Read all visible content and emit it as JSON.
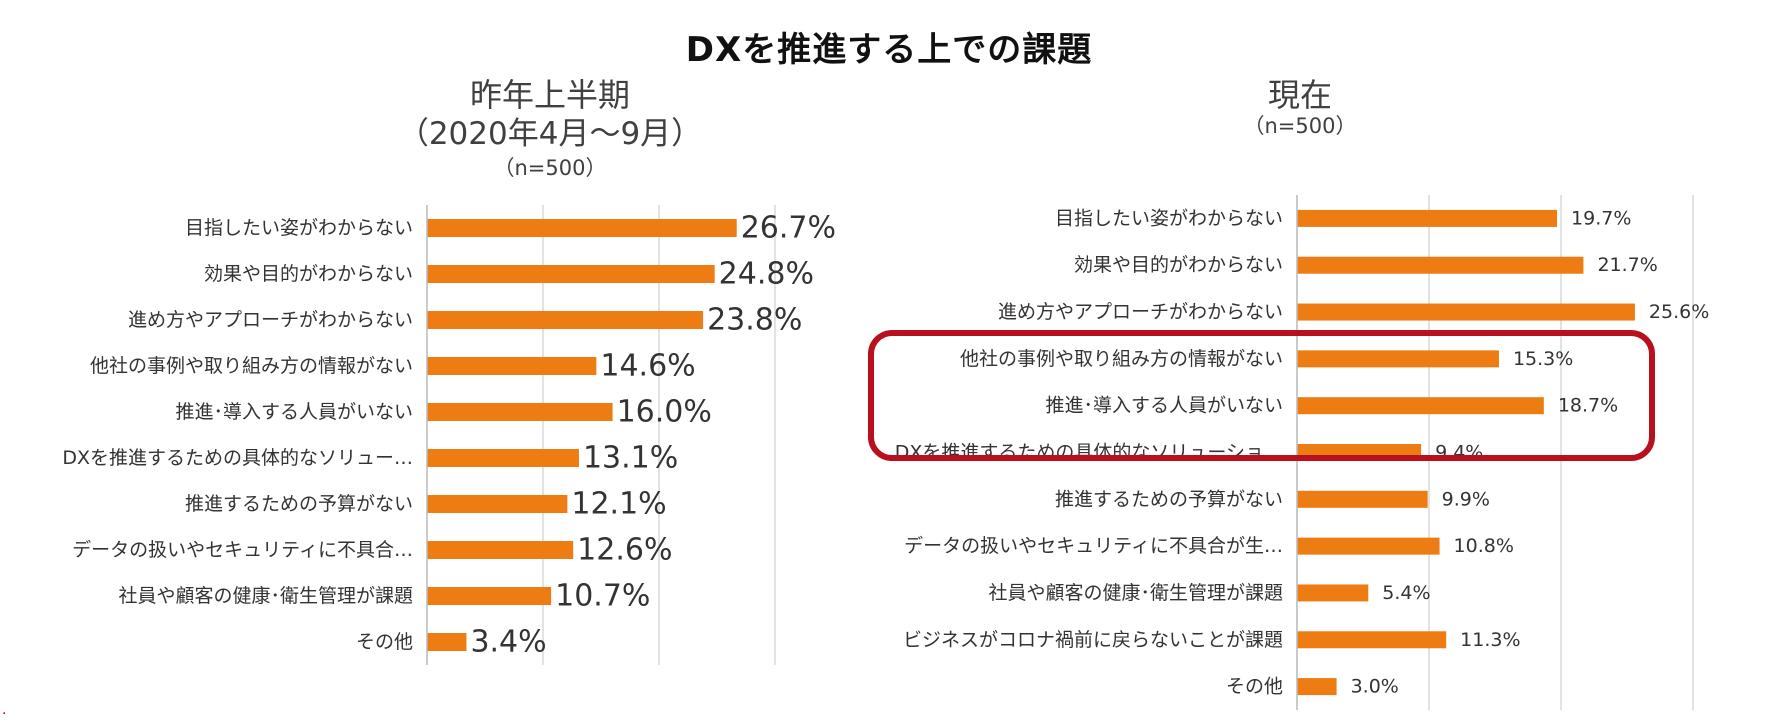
{
  "title": "DXを推進する上での課題",
  "footnote_mark": ".",
  "colors": {
    "bar": "#ED7D12",
    "highlight": "#B8101E",
    "grid": "#D9D9D9"
  },
  "panels": {
    "left": {
      "title": "昨年上半期",
      "subtitle": "（2020年4月～9月）",
      "n": "（n=500）"
    },
    "right": {
      "title": "現在",
      "n": "（n=500）"
    }
  },
  "chart_data": [
    {
      "type": "bar",
      "orientation": "horizontal",
      "title": "昨年上半期",
      "categories": [
        "目指したい姿がわからない",
        "効果や目的がわからない",
        "進め方やアプローチがわからない",
        "他社の事例や取り組み方の情報がない",
        "推進･導入する人員がいない",
        "DXを推進するための具体的なソリュー…",
        "推進するための予算がない",
        "データの扱いやセキュリティに不具合…",
        "社員や顧客の健康･衛生管理が課題",
        "その他"
      ],
      "values": [
        26.7,
        24.8,
        23.8,
        14.6,
        16.0,
        13.1,
        12.1,
        12.6,
        10.7,
        3.4
      ],
      "labels": [
        "26.7%",
        "24.8%",
        "23.8%",
        "14.6%",
        "16.0%",
        "13.1%",
        "12.1%",
        "12.6%",
        "10.7%",
        "3.4%"
      ],
      "xlim": [
        0,
        30
      ],
      "grid": true
    },
    {
      "type": "bar",
      "orientation": "horizontal",
      "title": "現在",
      "categories": [
        "目指したい姿がわからない",
        "効果や目的がわからない",
        "進め方やアプローチがわからない",
        "他社の事例や取り組み方の情報がない",
        "推進･導入する人員がいない",
        "DXを推進するための具体的なソリューショ…",
        "推進するための予算がない",
        "データの扱いやセキュリティに不具合が生…",
        "社員や顧客の健康･衛生管理が課題",
        "ビジネスがコロナ禍前に戻らないことが課題",
        "その他"
      ],
      "values": [
        19.7,
        21.7,
        25.6,
        15.3,
        18.7,
        9.4,
        9.9,
        10.8,
        5.4,
        11.3,
        3.0
      ],
      "labels": [
        "19.7%",
        "21.7%",
        "25.6%",
        "15.3%",
        "18.7%",
        "9.4%",
        "9.9%",
        "10.8%",
        "5.4%",
        "11.3%",
        "3.0%"
      ],
      "xlim": [
        0,
        30
      ],
      "grid": true,
      "highlighted_categories": [
        3,
        4,
        5
      ]
    }
  ]
}
